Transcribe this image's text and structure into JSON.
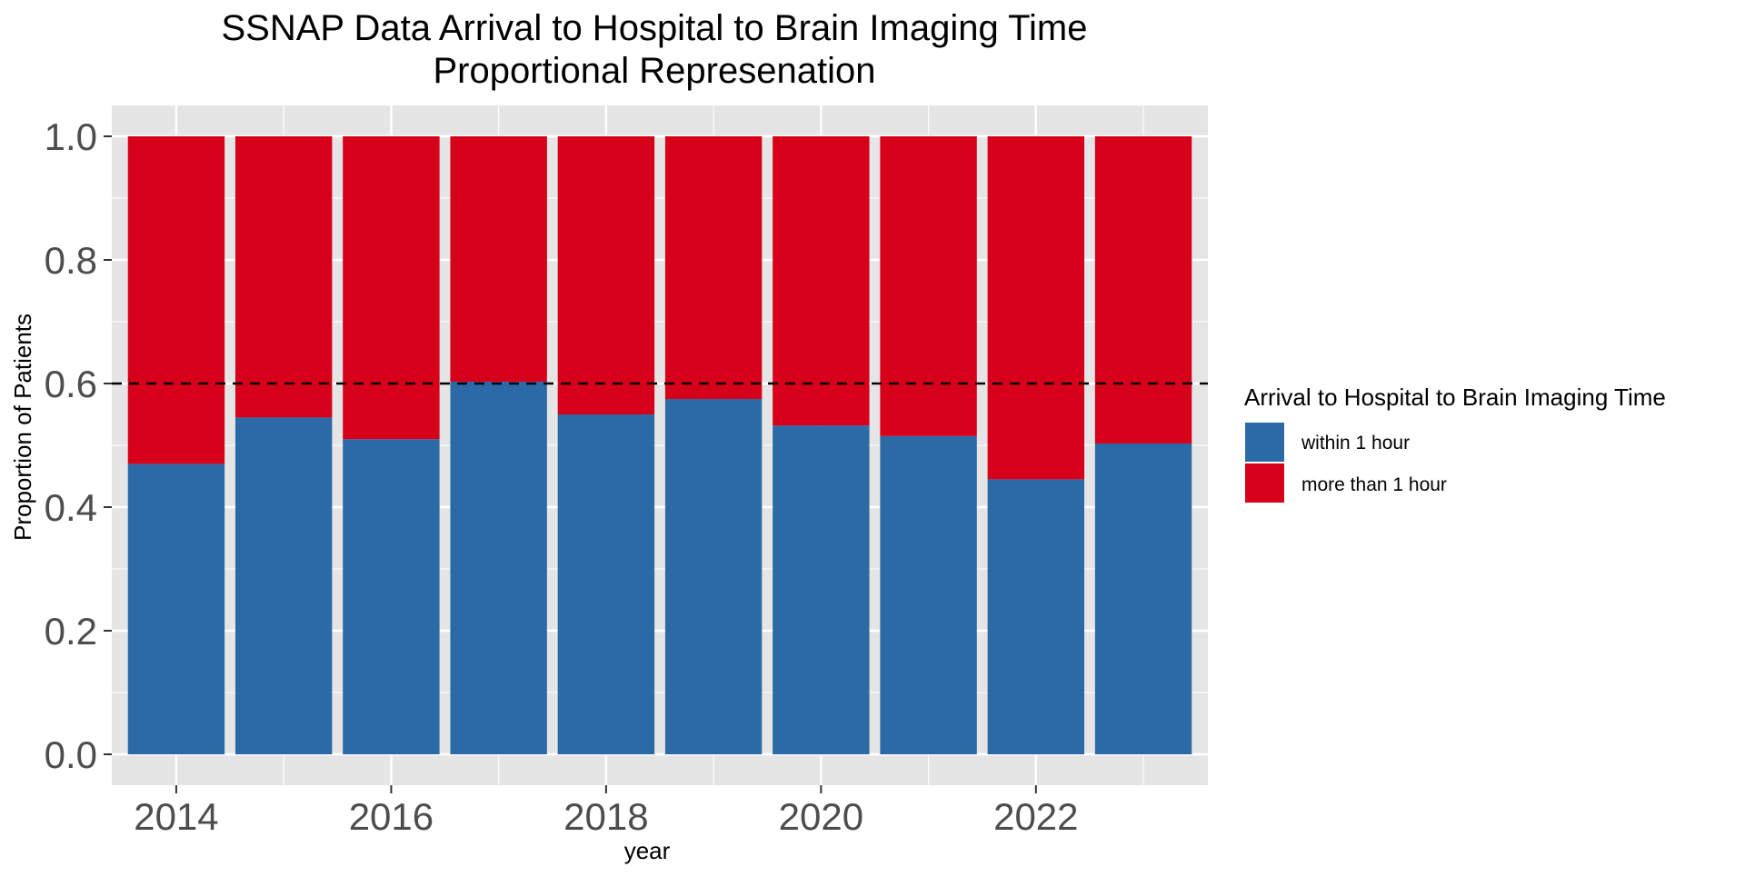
{
  "chart_data": {
    "type": "bar",
    "stacked": true,
    "title": "SSNAP Data Arrival to Hospital to Brain Imaging Time",
    "subtitle": "Proportional Represenation",
    "xlabel": "year",
    "ylabel": "Proportion of Patients",
    "x": [
      2014,
      2015,
      2016,
      2017,
      2018,
      2019,
      2020,
      2021,
      2022,
      2023
    ],
    "xlim": [
      2013.4,
      2023.6
    ],
    "ylim": [
      -0.05,
      1.05
    ],
    "x_ticks": [
      "2014",
      "2016",
      "2018",
      "2020",
      "2022"
    ],
    "y_ticks": [
      "0.0",
      "0.2",
      "0.4",
      "0.6",
      "0.8",
      "1.0"
    ],
    "series": [
      {
        "name": "within 1 hour",
        "color": "#2c6aa7",
        "values": [
          0.47,
          0.545,
          0.51,
          0.603,
          0.55,
          0.575,
          0.532,
          0.515,
          0.445,
          0.503
        ]
      },
      {
        "name": "more than 1 hour",
        "color": "#d7001a",
        "values": [
          0.53,
          0.455,
          0.49,
          0.397,
          0.45,
          0.425,
          0.468,
          0.485,
          0.555,
          0.497
        ]
      }
    ],
    "reference_line": {
      "y": 0.6,
      "style": "dashed",
      "color": "#000000"
    },
    "legend": {
      "title": "Arrival to Hospital to Brain Imaging Time",
      "position": "right"
    },
    "grid": true,
    "panel_background": "#e5e5e5",
    "grid_color": "#ffffff"
  }
}
